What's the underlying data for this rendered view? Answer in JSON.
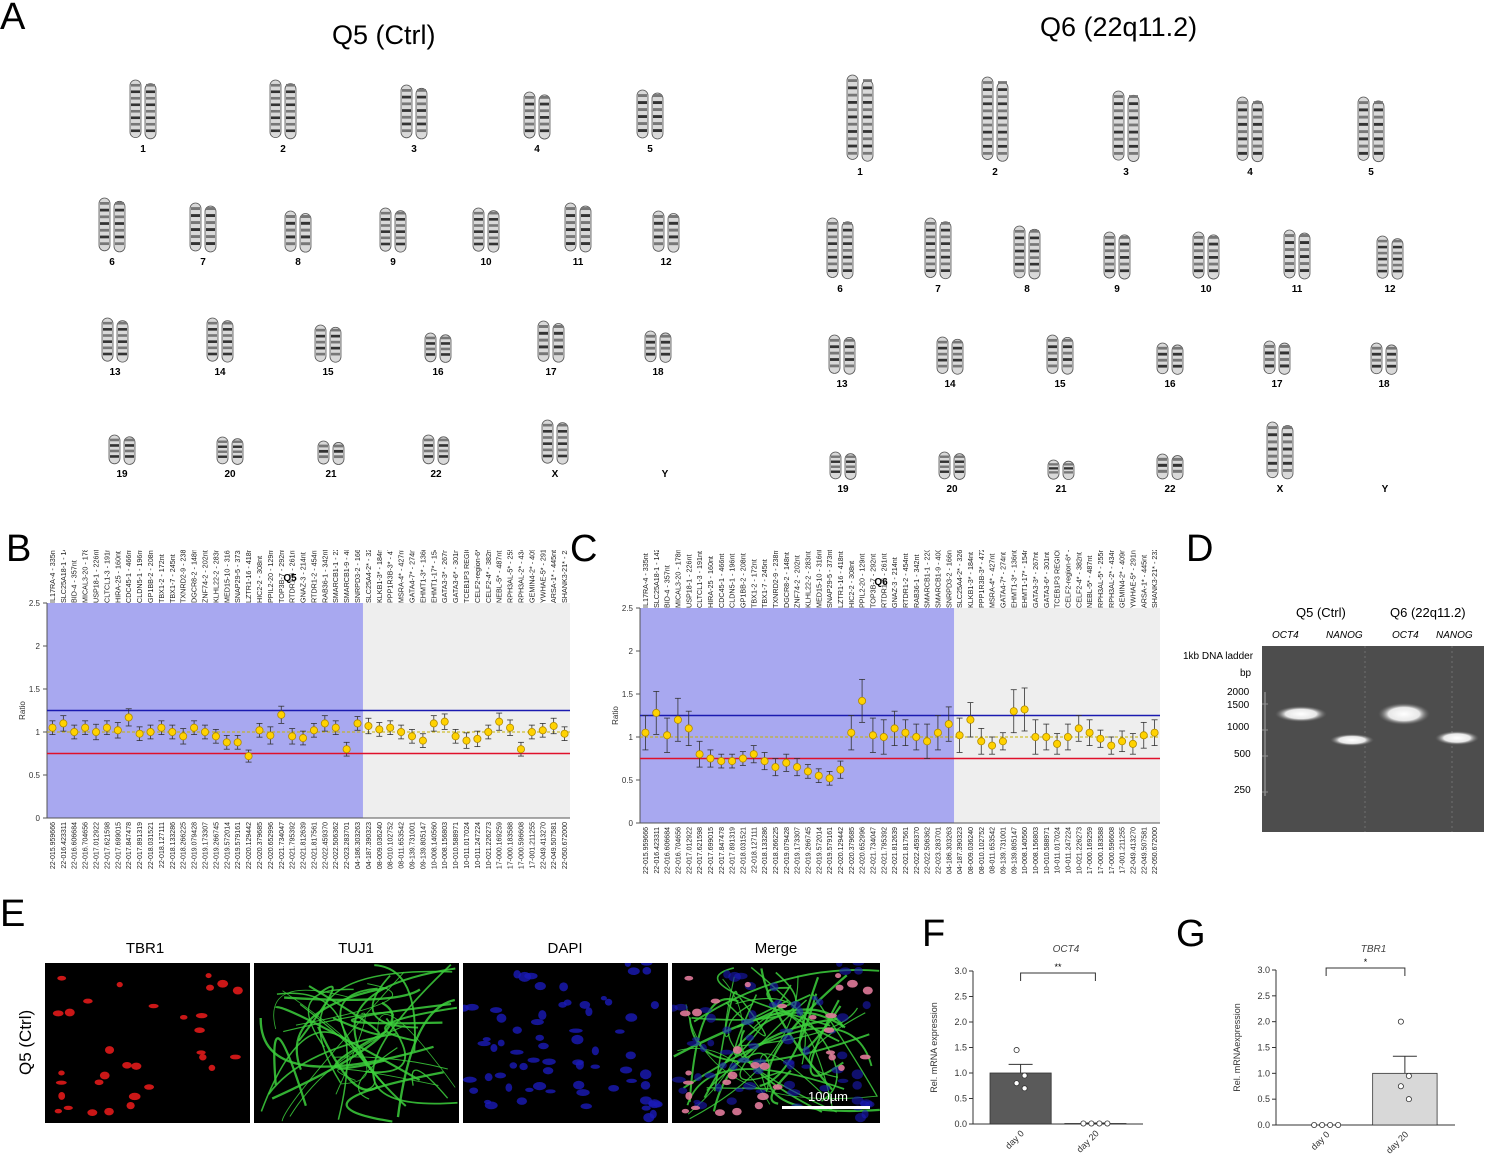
{
  "panels": {
    "a": "A",
    "b": "B",
    "c": "C",
    "d": "D",
    "e": "E",
    "f": "F",
    "g": "G"
  },
  "karyotype": {
    "left_title": "Q5 (Ctrl)",
    "right_title": "Q6 (22q11.2)",
    "labels": [
      "1",
      "2",
      "3",
      "4",
      "5",
      "6",
      "7",
      "8",
      "9",
      "10",
      "11",
      "12",
      "13",
      "14",
      "15",
      "16",
      "17",
      "18",
      "19",
      "20",
      "21",
      "22",
      "X",
      "Y"
    ]
  },
  "mlpa": {
    "q5_title": "Q5",
    "q6_title": "Q6",
    "ylabel": "Ratio"
  },
  "gel": {
    "q5_label": "Q5 (Ctrl)",
    "q6_label": "Q6 (22q11.2)",
    "lane_oct4": "OCT4",
    "lane_nanog": "NANOG",
    "ladder_label": "1kb DNA ladder",
    "bp_label": "bp",
    "ladder_marks": [
      "2000",
      "1500",
      "1000",
      "500",
      "250"
    ]
  },
  "immuno": {
    "row_label": "Q5 (Ctrl)",
    "channels": [
      "TBR1",
      "TUJ1",
      "DAPI",
      "Merge"
    ],
    "scale_bar": "100µm"
  },
  "chart_data": [
    {
      "type": "scatter",
      "title": "Q5",
      "ylabel": "Ratio",
      "ylim": [
        0,
        2.5
      ],
      "yticks": [
        "0",
        "0.5",
        "1",
        "1.5",
        "2",
        "2.5"
      ],
      "thresholds": {
        "upper": 1.25,
        "lower": 0.75
      },
      "probes": [
        "IL17RA-4 - 335nt",
        "SLC25A18-1 - 142nt",
        "BID-4 - 357nt",
        "MICAL3-20 - 178nt",
        "USP18-1 - 226nt",
        "CLTCL1-3 - 191nt",
        "HIRA-25 - 160nt",
        "CDC45-1 - 466nt",
        "CLDN5-1 - 196nt",
        "GP1BB-2 - 208nt",
        "TBX1-2 - 172nt",
        "TBX1-7 - 245nt",
        "TXNRD2-9 - 238nt",
        "DGCR8-2 - 148nt",
        "ZNF74-2 - 202nt",
        "KLHL22-2 - 283nt",
        "MED15-10 - 316nt",
        "SNAP29-5 - 373nt",
        "LZTR1-16 - 418nt",
        "HIC2-2 - 308nt",
        "PPIL2-20 - 129nt",
        "TOP3B-7 - 292nt",
        "RTDR1-6 - 261nt",
        "GNAZ-3 - 214nt",
        "RTDR1-2 - 454nt",
        "RAB36-1 - 342nt",
        "SMARCB1-1 - 220nt",
        "SMARCB1-9 - 400nt",
        "SNRPD3-2 - 166nt",
        "SLC25A4-2* - 326nt",
        "KLKB1-3* - 184nt",
        "PPP1R3B-3* - 472nt",
        "MSRA-4* - 427nt",
        "GATA4-7* - 274nt",
        "EHMT1-3* - 136nt",
        "EHMT1-17* - 154nt",
        "GATA3-3* - 267nt",
        "GATA3-6* - 301nt",
        "TCEB1P3 REGION-down* - 350",
        "CELF2-region-6* - 364nt",
        "CELF2-4* - 382nt",
        "NEBL-5* - 487nt",
        "RPH3AL-5* - 255nt",
        "RPH3AL-2* - 434nt",
        "GEMIN4-2* - 409nt",
        "YWHAE-5* - 291nt",
        "ARSA-1* - 445nt",
        "SHANK3-21* - 232nt"
      ],
      "positions": [
        "22-015.959666",
        "22-016.423311",
        "22-016.606684",
        "22-016.704656",
        "22-017.012922",
        "22-017.621598",
        "22-017.699015",
        "22-017.847478",
        "22-017.891319",
        "22-018.031521",
        "22-018.127111",
        "22-018.133286",
        "22-018.266225",
        "22-019.079428",
        "22-019.173307",
        "22-019.266745",
        "22-019.572014",
        "22-019.579161",
        "22-020.129442",
        "22-020.379685",
        "22-020.652996",
        "22-021.734047",
        "22-021.795392",
        "22-021.812639",
        "22-021.817561",
        "22-022.459370",
        "22-022.506362",
        "22-023.283701",
        "04-186.303263",
        "04-187.390323",
        "08-009.036240",
        "08-010.102752",
        "08-011.653542",
        "09-139.731001",
        "09-139.805147",
        "10-008.140560",
        "10-008.156803",
        "10-010.588971",
        "10-011.017024",
        "10-011.247224",
        "10-021.226273",
        "17-000.169259",
        "17-000.183588",
        "17-000.596608",
        "17-001.211255",
        "22-049.413270",
        "22-049.507581",
        "22-050.672000"
      ],
      "values": [
        1.05,
        1.1,
        1.0,
        1.05,
        1.0,
        1.05,
        1.02,
        1.17,
        0.98,
        1.0,
        1.05,
        1.0,
        0.95,
        1.05,
        1.0,
        0.95,
        0.88,
        0.88,
        0.72,
        1.02,
        0.96,
        1.2,
        0.95,
        0.93,
        1.02,
        1.1,
        1.05,
        0.8,
        1.1,
        1.07,
        1.03,
        1.05,
        1.0,
        0.95,
        0.9,
        1.1,
        1.12,
        0.95,
        0.9,
        0.92,
        1.0,
        1.12,
        1.05,
        0.8,
        1.0,
        1.02,
        1.07,
        0.98
      ],
      "errors": [
        0.08,
        0.09,
        0.08,
        0.08,
        0.09,
        0.08,
        0.09,
        0.1,
        0.08,
        0.08,
        0.08,
        0.08,
        0.09,
        0.08,
        0.08,
        0.08,
        0.08,
        0.08,
        0.07,
        0.08,
        0.1,
        0.1,
        0.09,
        0.08,
        0.08,
        0.09,
        0.08,
        0.08,
        0.08,
        0.09,
        0.08,
        0.08,
        0.08,
        0.08,
        0.08,
        0.09,
        0.09,
        0.08,
        0.09,
        0.09,
        0.08,
        0.1,
        0.09,
        0.08,
        0.08,
        0.08,
        0.09,
        0.08
      ]
    },
    {
      "type": "scatter",
      "title": "Q6",
      "ylabel": "Ratio",
      "ylim": [
        0,
        2.5
      ],
      "yticks": [
        "0",
        "0.5",
        "1",
        "1.5",
        "2",
        "2.5"
      ],
      "thresholds": {
        "upper": 1.25,
        "lower": 0.75
      },
      "probes": [
        "IL17RA-4 - 335nt",
        "SLC25A18-1 - 142nt",
        "BID-4 - 357nt",
        "MICAL3-20 - 178nt",
        "USP18-1 - 226nt",
        "CLTCL1-3 - 191nt",
        "HIRA-25 - 160nt",
        "CDC45-1 - 466nt",
        "CLDN5-1 - 196nt",
        "GP1BB-2 - 208nt",
        "TBX1-2 - 172nt",
        "TBX1-7 - 245nt",
        "TXNRD2-9 - 238nt",
        "DGCR8-2 - 148nt",
        "ZNF74-2 - 202nt",
        "KLHL22-2 - 283nt",
        "MED15-10 - 316nt",
        "SNAP29-5 - 373nt",
        "LZTR1-16 - 418nt",
        "HIC2-2 - 308nt",
        "PPIL2-20 - 129nt",
        "TOP3B-7 - 292nt",
        "RTDR1-6 - 261nt",
        "GNAZ-3 - 214nt",
        "RTDR1-2 - 454nt",
        "RAB36-1 - 342nt",
        "SMARCB1-1 - 220nt",
        "SMARCB1-9 - 400nt",
        "SNRPD3-2 - 166nt",
        "SLC25A4-2* - 326nt",
        "KLKB1-3* - 184nt",
        "PPP1R3B-3* - 472nt",
        "MSRA-4* - 427nt",
        "GATA4-7* - 274nt",
        "EHMT1-3* - 136nt",
        "EHMT1-17* - 154nt",
        "GATA3-3* - 267nt",
        "GATA3-6* - 301nt",
        "TCEB1P3 REGION-dow",
        "CELF2-region-6* - 364nt",
        "CELF2-4* - 382nt",
        "NEBL-5* - 487nt",
        "RPH3AL-5* - 255nt",
        "RPH3AL-2* - 434nt",
        "GEMIN4-2* - 409nt",
        "YWHAE-5* - 291nt",
        "ARSA-1* - 445nt",
        "SHANK3-21* - 232nt"
      ],
      "positions": [
        "22-015.959666",
        "22-016.423311",
        "22-016.606684",
        "22-016.704656",
        "22-017.012922",
        "22-017.621598",
        "22-017.699015",
        "22-017.847478",
        "22-017.891319",
        "22-018.031521",
        "22-018.127111",
        "22-018.133286",
        "22-018.266225",
        "22-019.079428",
        "22-019.173307",
        "22-019.266745",
        "22-019.572014",
        "22-019.579161",
        "22-020.129442",
        "22-020.379685",
        "22-020.652996",
        "22-021.734047",
        "22-021.795392",
        "22-021.812639",
        "22-021.817561",
        "22-022.459370",
        "22-022.506362",
        "22-023.283701",
        "04-186.303263",
        "04-187.390323",
        "08-009.036240",
        "08-010.102752",
        "08-011.653542",
        "09-139.731001",
        "09-139.805147",
        "10-008.140560",
        "10-008.156803",
        "10-010.588971",
        "10-011.017024",
        "10-011.247224",
        "10-021.226273",
        "17-000.169259",
        "17-000.183588",
        "17-000.596608",
        "17-001.211255",
        "22-049.413270",
        "22-049.507581",
        "22-050.672000"
      ],
      "values": [
        1.05,
        1.28,
        1.02,
        1.2,
        1.1,
        0.8,
        0.75,
        0.72,
        0.72,
        0.75,
        0.8,
        0.72,
        0.65,
        0.7,
        0.65,
        0.6,
        0.55,
        0.52,
        0.62,
        1.05,
        1.42,
        1.02,
        1.0,
        1.1,
        1.05,
        1.0,
        0.95,
        1.05,
        1.15,
        1.02,
        1.2,
        0.95,
        0.9,
        0.95,
        1.3,
        1.32,
        1.0,
        1.0,
        0.92,
        1.0,
        1.1,
        1.05,
        0.98,
        0.9,
        0.95,
        0.92,
        1.02,
        1.05
      ],
      "errors": [
        0.2,
        0.25,
        0.2,
        0.25,
        0.2,
        0.15,
        0.1,
        0.08,
        0.08,
        0.08,
        0.1,
        0.1,
        0.1,
        0.1,
        0.1,
        0.08,
        0.08,
        0.08,
        0.1,
        0.2,
        0.25,
        0.2,
        0.2,
        0.2,
        0.15,
        0.15,
        0.2,
        0.2,
        0.2,
        0.2,
        0.2,
        0.15,
        0.1,
        0.1,
        0.25,
        0.25,
        0.2,
        0.15,
        0.12,
        0.15,
        0.15,
        0.15,
        0.1,
        0.1,
        0.12,
        0.12,
        0.15,
        0.15
      ]
    },
    {
      "type": "bar",
      "title": "OCT4",
      "ylabel": "Rel. mRNA expression",
      "categories": [
        "day 0",
        "day 20"
      ],
      "values": [
        1.0,
        0.01
      ],
      "sem": [
        0.17,
        0.01
      ],
      "points": [
        [
          1.45,
          0.95,
          0.8,
          0.7
        ],
        [
          0.01,
          0.01,
          0.01,
          0.01
        ]
      ],
      "ylim": [
        0,
        3.0
      ],
      "yticks": [
        "0.0",
        "0.5",
        "1.0",
        "1.5",
        "2.0",
        "2.5",
        "3.0"
      ],
      "significance": "**"
    },
    {
      "type": "bar",
      "title": "TBR1",
      "ylabel": "Rel. mRNAexpression",
      "categories": [
        "day 0",
        "day 20"
      ],
      "values": [
        0.0,
        1.0
      ],
      "sem": [
        0.0,
        0.33
      ],
      "points": [
        [
          0,
          0,
          0,
          0
        ],
        [
          2.0,
          0.95,
          0.75,
          0.5
        ]
      ],
      "ylim": [
        0,
        3.0
      ],
      "yticks": [
        "0.0",
        "0.5",
        "1.0",
        "1.5",
        "2.0",
        "2.5",
        "3.0"
      ],
      "significance": "*"
    }
  ]
}
